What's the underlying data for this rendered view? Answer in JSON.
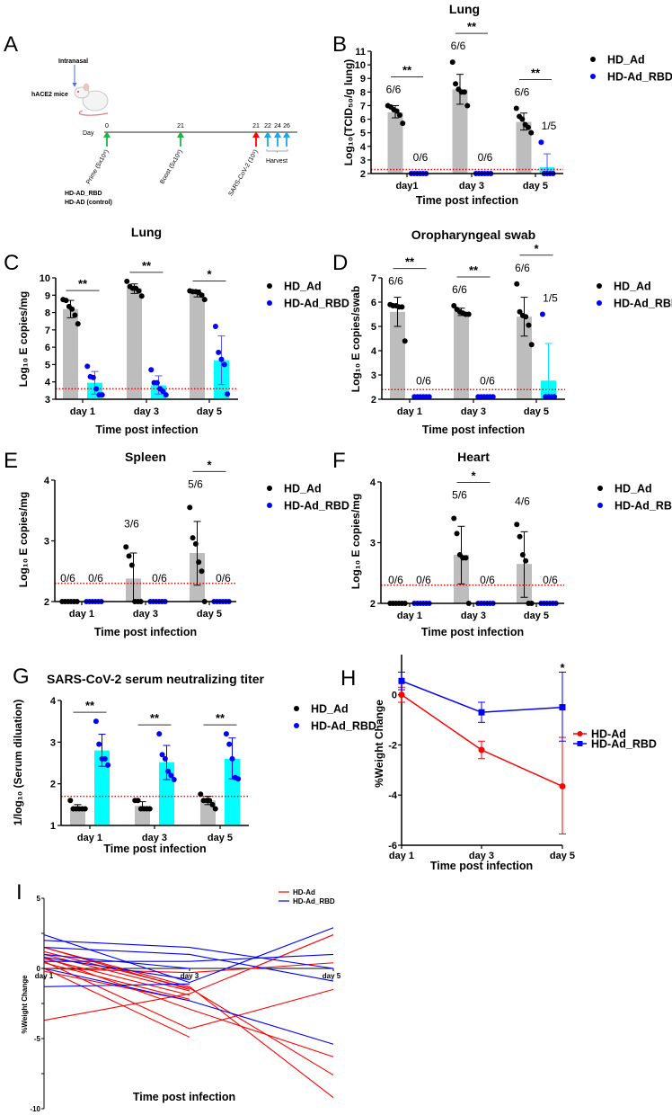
{
  "panel_labels": [
    "A",
    "B",
    "C",
    "D",
    "E",
    "F",
    "G",
    "H",
    "I"
  ],
  "panel_a": {
    "intranasal": "Intranasal",
    "mice": "hACE2 mice",
    "day_label": "Day",
    "days": [
      "0",
      "21",
      "21",
      "22",
      "24",
      "26"
    ],
    "events": [
      "Prime (5x10⁹)",
      "Boost (5x10⁹)",
      "SARS-CoV-2 (10⁵)"
    ],
    "harvest": "Harvest",
    "groups": [
      "HD-AD_RBD",
      "HD-AD (control)"
    ],
    "colors": {
      "vaccine": "#22b14c",
      "challenge": "#ff0000",
      "harvest": "#1ea7e8"
    }
  },
  "chart_data": [
    {
      "type": "bar",
      "panel": "B",
      "title": "Lung",
      "xlabel": "Time post infection",
      "ylabel": "Log₁₀(TCID₅₀/g lung)",
      "ylim": [
        2,
        11
      ],
      "yticks": [
        2,
        3,
        4,
        5,
        6,
        7,
        8,
        9,
        10,
        11
      ],
      "categories": [
        "day1",
        "day 3",
        "day 5"
      ],
      "lod": 2.3,
      "series": [
        {
          "name": "HD_Ad",
          "point_color": "#000000",
          "bar_color": "#bdbdbd",
          "err_color": "#000000",
          "points": [
            [
              7.0,
              6.9,
              6.7,
              6.6,
              6.3,
              5.7
            ],
            [
              10.2,
              8.6,
              8.2,
              8.0,
              8.0,
              7.0
            ],
            [
              6.8,
              6.2,
              6.0,
              5.6,
              5.4,
              5.0
            ]
          ],
          "mean": [
            6.5,
            8.2,
            5.8
          ],
          "err": [
            [
              6.1,
              7.0
            ],
            [
              7.1,
              9.3
            ],
            [
              5.2,
              6.45
            ]
          ],
          "ratios": [
            "6/6",
            "6/6",
            "6/6"
          ]
        },
        {
          "name": "HD-Ad_RBD",
          "point_color": "#0000ff",
          "bar_color": "#00ffff",
          "err_color": "#5555ff",
          "points": [
            [
              2,
              2,
              2,
              2,
              2,
              2
            ],
            [
              2,
              2,
              2,
              2,
              2,
              2
            ],
            [
              4.3,
              2,
              2,
              2,
              2
            ]
          ],
          "mean": [
            2,
            2,
            2.46
          ],
          "err": [
            [
              2,
              2
            ],
            [
              2,
              2
            ],
            [
              2,
              3.45
            ]
          ],
          "ratios": [
            "0/6",
            "0/6",
            "1/5"
          ]
        }
      ],
      "significance": [
        {
          "group": 0,
          "label": "**"
        },
        {
          "group": 1,
          "label": "**"
        },
        {
          "group": 2,
          "label": "**"
        }
      ]
    },
    {
      "type": "bar",
      "panel": "C",
      "title": "Lung",
      "xlabel": "Time post infection",
      "ylabel": "Log₁₀ E copies/mg",
      "ylim": [
        3,
        10
      ],
      "yticks": [
        3,
        4,
        5,
        6,
        7,
        8,
        9,
        10
      ],
      "categories": [
        "day 1",
        "day 3",
        "day 5"
      ],
      "lod": 3.6,
      "series": [
        {
          "name": "HD_Ad",
          "point_color": "#000000",
          "bar_color": "#bdbdbd",
          "err_color": "#000000",
          "points": [
            [
              8.75,
              8.7,
              8.35,
              8.2,
              7.85,
              7.35
            ],
            [
              9.8,
              9.5,
              9.4,
              9.4,
              9.25,
              8.95
            ],
            [
              9.25,
              9.2,
              9.2,
              9.15,
              9.0,
              8.75
            ]
          ],
          "mean": [
            8.2,
            9.4,
            9.1
          ],
          "err": [
            [
              7.7,
              8.7
            ],
            [
              9.1,
              9.65
            ],
            [
              8.9,
              9.3
            ]
          ],
          "ratios": []
        },
        {
          "name": "HD-Ad_RBD",
          "point_color": "#0000ff",
          "bar_color": "#00ffff",
          "err_color": "#5555ff",
          "points": [
            [
              4.9,
              4.3,
              4.25,
              3.6,
              3.25,
              3.25
            ],
            [
              4.7,
              3.95,
              3.95,
              3.6,
              3.45,
              3.25
            ],
            [
              7.2,
              5.7,
              5.3,
              5.0,
              3.3
            ]
          ],
          "mean": [
            3.95,
            3.8,
            5.25
          ],
          "err": [
            [
              3.3,
              4.6
            ],
            [
              3.3,
              4.35
            ],
            [
              3.85,
              6.65
            ]
          ],
          "ratios": []
        }
      ],
      "significance": [
        {
          "group": 0,
          "label": "**"
        },
        {
          "group": 1,
          "label": "**"
        },
        {
          "group": 2,
          "label": "*"
        }
      ]
    },
    {
      "type": "bar",
      "panel": "D",
      "title": "Oropharyngeal swab",
      "xlabel": "Time post infection",
      "ylabel": "Log₁₀ E copies/swab",
      "ylim": [
        2,
        7
      ],
      "yticks": [
        2,
        3,
        4,
        5,
        6,
        7
      ],
      "categories": [
        "day 1",
        "day 3",
        "day 5"
      ],
      "lod": 2.4,
      "series": [
        {
          "name": "HD_Ad",
          "point_color": "#000000",
          "bar_color": "#bdbdbd",
          "err_color": "#000000",
          "points": [
            [
              5.9,
              5.85,
              5.85,
              5.8,
              5.8,
              4.4
            ],
            [
              5.85,
              5.7,
              5.6,
              5.55,
              5.5,
              5.5
            ],
            [
              6.75,
              5.6,
              5.45,
              5.4,
              5.05,
              4.25
            ]
          ],
          "mean": [
            5.6,
            5.6,
            5.4
          ],
          "err": [
            [
              5.0,
              6.2
            ],
            [
              5.45,
              5.75
            ],
            [
              4.6,
              6.2
            ]
          ],
          "ratios": [
            "6/6",
            "6/6",
            "6/6"
          ]
        },
        {
          "name": "HD-Ad_RBD",
          "point_color": "#0000ff",
          "bar_color": "#00ffff",
          "err_color": "#00e5ff",
          "points": [
            [
              2.1,
              2.1,
              2.1,
              2.1,
              2.1,
              2.1
            ],
            [
              2.1,
              2.1,
              2.1,
              2.1,
              2.1,
              2.1
            ],
            [
              5.5,
              2.1,
              2.1,
              2.1,
              2.1
            ]
          ],
          "mean": [
            2.1,
            2.1,
            2.77
          ],
          "err": [
            [
              2.1,
              2.1
            ],
            [
              2.1,
              2.1
            ],
            [
              2.1,
              4.3
            ]
          ],
          "ratios": [
            "0/6",
            "0/6",
            "1/5"
          ]
        }
      ],
      "significance": [
        {
          "group": 0,
          "label": "**"
        },
        {
          "group": 1,
          "label": "**"
        },
        {
          "group": 2,
          "label": "*"
        }
      ]
    },
    {
      "type": "bar",
      "panel": "E",
      "title": "Spleen",
      "xlabel": "Time post infection",
      "ylabel": "Log₁₀ E copies/mg",
      "ylim": [
        2,
        4
      ],
      "yticks": [
        2,
        3,
        4
      ],
      "categories": [
        "day 1",
        "day 3",
        "day 5"
      ],
      "lod": 2.3,
      "series": [
        {
          "name": "HD_Ad",
          "point_color": "#000000",
          "bar_color": "#bdbdbd",
          "err_color": "#000000",
          "points": [
            [
              2,
              2,
              2,
              2,
              2,
              2
            ],
            [
              2.9,
              2.75,
              2.6,
              2,
              2,
              2
            ],
            [
              3.55,
              3.05,
              2.95,
              2.65,
              2.5,
              2.0
            ]
          ],
          "mean": [
            2,
            2.38,
            2.8
          ],
          "err": [
            [
              2,
              2
            ],
            [
              2,
              2.8
            ],
            [
              2.27,
              3.32
            ]
          ],
          "ratios": [
            "0/6",
            "3/6",
            "5/6"
          ]
        },
        {
          "name": "HD-Ad_RBD",
          "point_color": "#0000ff",
          "bar_color": "#00ffff",
          "err_color": "#5555ff",
          "points": [
            [
              2,
              2,
              2,
              2,
              2,
              2
            ],
            [
              2,
              2,
              2,
              2,
              2,
              2
            ],
            [
              2,
              2,
              2,
              2,
              2,
              2
            ]
          ],
          "mean": [
            2,
            2,
            2
          ],
          "err": [
            [
              2,
              2
            ],
            [
              2,
              2
            ],
            [
              2,
              2
            ]
          ],
          "ratios": [
            "0/6",
            "0/6",
            "0/6"
          ]
        }
      ],
      "significance": [
        {
          "group": 2,
          "label": "*"
        }
      ]
    },
    {
      "type": "bar",
      "panel": "F",
      "title": "Heart",
      "xlabel": "Time post infection",
      "ylabel": "Log₁₀ E copies/mg",
      "ylim": [
        2,
        4
      ],
      "yticks": [
        2,
        3,
        4
      ],
      "categories": [
        "day 1",
        "day 3",
        "day 5"
      ],
      "lod": 2.3,
      "series": [
        {
          "name": "HD_Ad",
          "point_color": "#000000",
          "bar_color": "#bdbdbd",
          "err_color": "#000000",
          "points": [
            [
              2,
              2,
              2,
              2,
              2,
              2
            ],
            [
              3.4,
              3.15,
              2.8,
              2.75,
              2.75,
              2.0
            ],
            [
              3.3,
              3.1,
              2.8,
              2.7,
              2.0,
              2.0
            ]
          ],
          "mean": [
            2,
            2.8,
            2.65
          ],
          "err": [
            [
              2,
              2
            ],
            [
              2.32,
              3.27
            ],
            [
              2.1,
              3.18
            ]
          ],
          "ratios": [
            "0/6",
            "5/6",
            "4/6"
          ]
        },
        {
          "name": "HD-Ad_RBD",
          "point_color": "#0000ff",
          "bar_color": "#00ffff",
          "err_color": "#5555ff",
          "points": [
            [
              2,
              2,
              2,
              2,
              2,
              2
            ],
            [
              2,
              2,
              2,
              2,
              2,
              2
            ],
            [
              2,
              2,
              2,
              2,
              2,
              2
            ]
          ],
          "mean": [
            2,
            2,
            2
          ],
          "err": [
            [
              2,
              2
            ],
            [
              2,
              2
            ],
            [
              2,
              2
            ]
          ],
          "ratios": [
            "0/6",
            "0/6",
            "0/6"
          ]
        }
      ],
      "significance": [
        {
          "group": 1,
          "label": "*"
        }
      ]
    },
    {
      "type": "bar",
      "panel": "G",
      "title": "SARS-CoV-2 serum neutralizing titer",
      "xlabel": "Time post infection",
      "ylabel": "1/log₁₀ (Serum diluation)",
      "ylim": [
        1,
        4
      ],
      "yticks": [
        1,
        2,
        3,
        4
      ],
      "categories": [
        "day 1",
        "day 3",
        "day 5"
      ],
      "lod": 1.7,
      "series": [
        {
          "name": "HD_Ad",
          "point_color": "#000000",
          "bar_color": "#bdbdbd",
          "err_color": "#000000",
          "points": [
            [
              1.6,
              1.4,
              1.4,
              1.4,
              1.4,
              1.4
            ],
            [
              1.6,
              1.6,
              1.4,
              1.4,
              1.4,
              1.4
            ],
            [
              1.75,
              1.6,
              1.6,
              1.6,
              1.5,
              1.4
            ]
          ],
          "mean": [
            1.43,
            1.47,
            1.6
          ],
          "err": [
            [
              1.4,
              1.5
            ],
            [
              1.4,
              1.57
            ],
            [
              1.5,
              1.7
            ]
          ],
          "ratios": []
        },
        {
          "name": "HD-Ad_RBD",
          "point_color": "#0000ff",
          "bar_color": "#00ffff",
          "err_color": "#0000ff",
          "points": [
            [
              3.5,
              2.95,
              2.6,
              2.6,
              2.45
            ],
            [
              3.2,
              2.7,
              2.6,
              2.3,
              2.2,
              2.1
            ],
            [
              3.2,
              2.95,
              2.6,
              2.15,
              2.12
            ]
          ],
          "mean": [
            2.8,
            2.52,
            2.6
          ],
          "err": [
            [
              2.42,
              3.19
            ],
            [
              2.1,
              2.92
            ],
            [
              2.12,
              3.1
            ]
          ],
          "ratios": []
        }
      ],
      "significance": [
        {
          "group": 0,
          "label": "**"
        },
        {
          "group": 1,
          "label": "**"
        },
        {
          "group": 2,
          "label": "**"
        }
      ]
    },
    {
      "type": "line",
      "panel": "H",
      "xlabel": "Time post infection",
      "ylabel": "%Weight Change",
      "ylim": [
        -6,
        1.6
      ],
      "yticks": [
        0,
        -2,
        -4,
        -6
      ],
      "categories": [
        "day 1",
        "day 3",
        "day 5"
      ],
      "series": [
        {
          "name": "HD-Ad",
          "color": "#ff0000",
          "marker": "circle",
          "values": [
            0.0,
            -2.2,
            -3.65
          ],
          "err": [
            [
              -0.3,
              0.3
            ],
            [
              -2.55,
              -1.85
            ],
            [
              -5.55,
              -1.7
            ]
          ]
        },
        {
          "name": "HD-Ad_RBD",
          "color": "#0000ff",
          "marker": "square",
          "values": [
            0.55,
            -0.7,
            -0.5
          ],
          "err": [
            [
              0.2,
              0.9
            ],
            [
              -1.1,
              -0.3
            ],
            [
              -1.85,
              0.9
            ]
          ]
        }
      ],
      "significance": [
        {
          "group": 2,
          "label": "*"
        }
      ]
    },
    {
      "type": "line",
      "panel": "I",
      "xlabel": "Time post infection",
      "ylabel": "%Weight Change",
      "ylim": [
        -10,
        5
      ],
      "yticks": [
        5,
        0,
        -5,
        -10
      ],
      "categories": [
        "day 1",
        "day 3",
        "day 5"
      ],
      "series": [
        {
          "name": "HD-Ad",
          "color": "#ff0000",
          "lines": [
            [
              1.5,
              -1.3,
              -9.2
            ],
            [
              1.2,
              -1.4,
              -7.6
            ],
            [
              0.8,
              -2.9,
              -6.3
            ],
            [
              -3.7,
              -1.8,
              2.4
            ],
            [
              0,
              -0.3,
              0.4
            ],
            [
              0.5,
              -4.3,
              -1.5
            ],
            [
              0,
              -4.9,
              null
            ],
            [
              1.0,
              -1.6,
              null
            ],
            [
              0.7,
              -1.9,
              null
            ],
            [
              0.4,
              -2.2,
              null
            ],
            [
              1.5,
              -1.5,
              null
            ],
            [
              -0.2,
              -2.3,
              null
            ]
          ]
        },
        {
          "name": "HD-Ad_RBD",
          "color": "#0000ff",
          "lines": [
            [
              2.4,
              -1.0,
              2.9
            ],
            [
              2.0,
              1.5,
              0.0
            ],
            [
              1.5,
              1.0,
              -0.9
            ],
            [
              0.5,
              0.5,
              1.0
            ],
            [
              1.0,
              0.0,
              null
            ],
            [
              0.0,
              -2.3,
              -5.4
            ],
            [
              -1.3,
              -1.1,
              null
            ],
            [
              0.8,
              -0.8,
              null
            ]
          ]
        }
      ]
    }
  ]
}
